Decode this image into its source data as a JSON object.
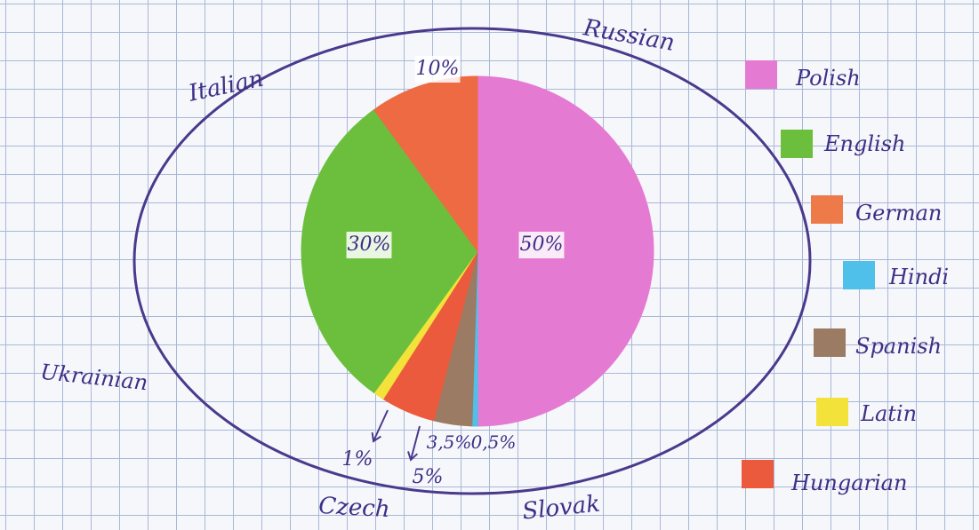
{
  "chart_data": {
    "type": "pie",
    "title": "",
    "categories": [
      "Polish",
      "English",
      "German",
      "Hindi",
      "Spanish",
      "Latin",
      "Hungarian"
    ],
    "values": [
      50,
      30,
      10,
      0.5,
      3.5,
      1,
      5
    ],
    "slice_order_clockwise_from_top": [
      "Polish",
      "Hindi",
      "Spanish",
      "Hungarian",
      "Latin",
      "English",
      "German"
    ],
    "data_labels": [
      "50%",
      "30%",
      "10%",
      "0,5%",
      "3,5%",
      "1%",
      "5%"
    ],
    "legend_position": "right",
    "colors": {
      "Polish": "#e57ad3",
      "English": "#6cbf3c",
      "German": "#ee6a42",
      "Hindi": "#4fc0ea",
      "Spanish": "#9b7b63",
      "Latin": "#f2e23a",
      "Hungarian": "#ec5a3d"
    },
    "outer_ring_labels": [
      "Russian",
      "Italian",
      "Ukrainian",
      "Czech",
      "Slovak"
    ]
  },
  "legend": [
    {
      "label": "Polish",
      "color": "#e57ad3"
    },
    {
      "label": "English",
      "color": "#6cbf3c"
    },
    {
      "label": "German",
      "color": "#ee7a4a"
    },
    {
      "label": "Hindi",
      "color": "#4fc0ea"
    },
    {
      "label": "Spanish",
      "color": "#9b7b63"
    },
    {
      "label": "Latin",
      "color": "#f2e23a"
    },
    {
      "label": "Hungarian",
      "color": "#ec5a3d"
    }
  ],
  "ring_color": "#4a3a8c",
  "text_color": "#3e2f86"
}
